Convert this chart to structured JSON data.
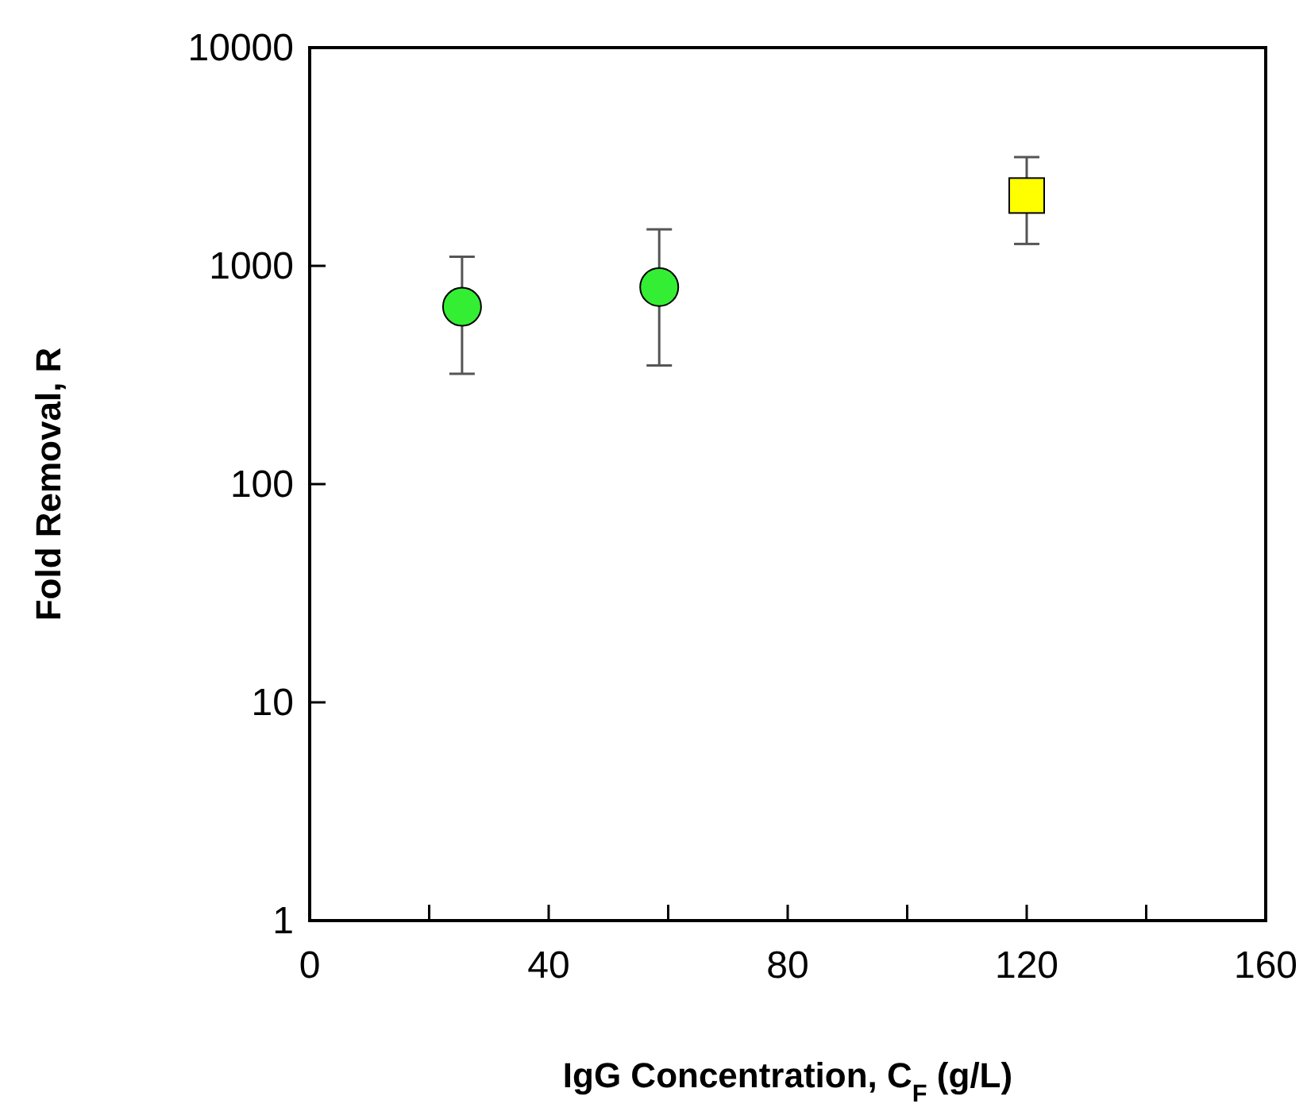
{
  "chart_data": {
    "type": "scatter",
    "xlabel": "IgG Concentration, C$_{F}$ (g/L)",
    "ylabel": "Fold Removal, R",
    "log": "y",
    "xlim": [
      0,
      160
    ],
    "xticks": [
      0,
      {
        "value": 20,
        "label": null
      },
      40,
      {
        "value": 60,
        "label": null
      },
      80,
      {
        "value": 100,
        "label": null
      },
      120,
      {
        "value": 140,
        "label": null
      },
      160
    ],
    "ylim": [
      1,
      10000
    ],
    "yticks": [
      1,
      10,
      100,
      1000,
      10000
    ],
    "grid": false,
    "series": [
      {
        "color": "#33ee33",
        "marker": "circle",
        "x": [
          25.5,
          58.5
        ],
        "values": [
          650,
          800
        ],
        "errors": [
          [
            320,
            1100
          ],
          [
            350,
            1470
          ]
        ]
      },
      {
        "color": "#ffff00",
        "marker": "square",
        "x": [
          120
        ],
        "values": [
          2100
        ],
        "errors": [
          [
            1260,
            3150
          ]
        ]
      }
    ]
  }
}
